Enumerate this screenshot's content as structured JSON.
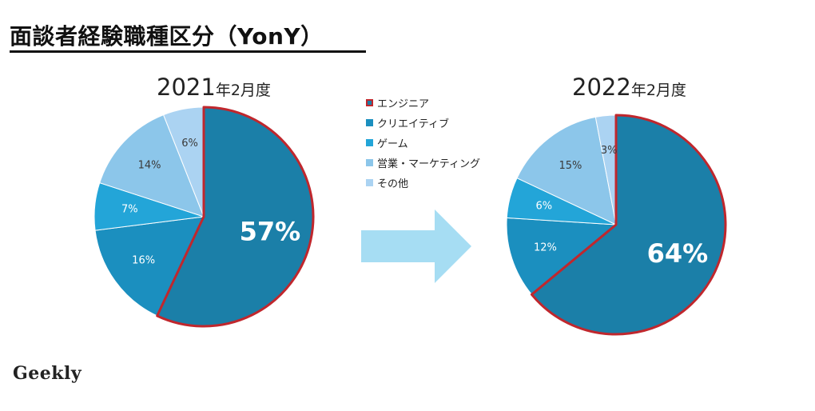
{
  "page_title": "面談者経験職種区分（YonY）",
  "logo_text": "Geekly",
  "legend": [
    {
      "label": "エンジニア",
      "color": "#1B7FA8",
      "highlight": true
    },
    {
      "label": "クリエイティブ",
      "color": "#1B8FBF"
    },
    {
      "label": "ゲーム",
      "color": "#23A5D8"
    },
    {
      "label": "営業・マーケティング",
      "color": "#8CC6EA"
    },
    {
      "label": "その他",
      "color": "#ABD3F2"
    }
  ],
  "chart_data": [
    {
      "type": "pie",
      "title_main": "2021",
      "title_sub": "年2月度",
      "categories": [
        "エンジニア",
        "クリエイティブ",
        "ゲーム",
        "営業・マーケティング",
        "その他"
      ],
      "values": [
        57,
        16,
        7,
        14,
        6
      ],
      "labels": [
        "57%",
        "16%",
        "7%",
        "14%",
        "6%"
      ],
      "highlight_index": 0
    },
    {
      "type": "pie",
      "title_main": "2022",
      "title_sub": "年2月度",
      "categories": [
        "エンジニア",
        "クリエイティブ",
        "ゲーム",
        "営業・マーケティング",
        "その他"
      ],
      "values": [
        64,
        12,
        6,
        15,
        3
      ],
      "labels": [
        "64%",
        "12%",
        "6%",
        "15%",
        "3%"
      ],
      "highlight_index": 0
    }
  ],
  "colors": {
    "slices": [
      "#1B7FA8",
      "#1B8FBF",
      "#23A5D8",
      "#8CC6EA",
      "#ABD3F2"
    ],
    "highlight_border": "#C0272D",
    "arrow": "#A6DDF3"
  }
}
